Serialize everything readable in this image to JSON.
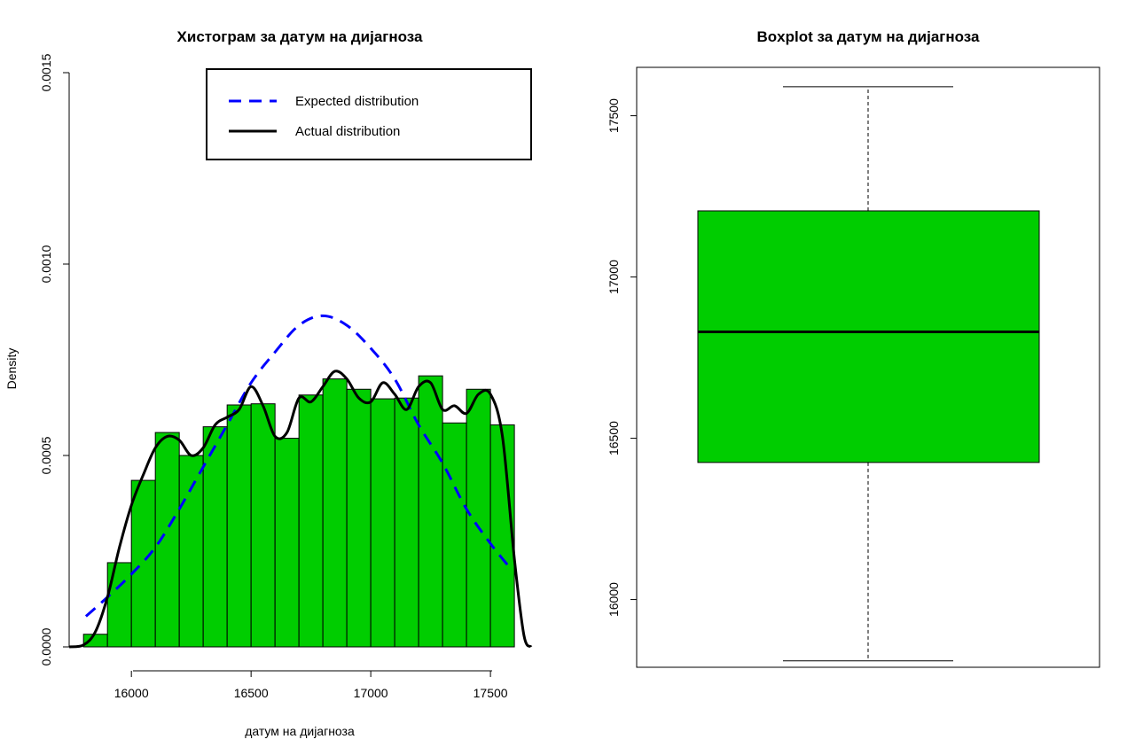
{
  "colors": {
    "bar_fill": "#00CD00",
    "expected_line": "#0000FF",
    "actual_line": "#000000",
    "box_fill": "#00CD00"
  },
  "chart_data": [
    {
      "type": "bar",
      "subtype": "histogram",
      "title": "Хистограм за  датум на дијагноза",
      "xlabel": "датум на дијагноза",
      "ylabel": "Density",
      "xlim": [
        15740,
        17670
      ],
      "ylim": [
        0,
        0.0015
      ],
      "x_ticks": [
        16000,
        16500,
        17000,
        17500
      ],
      "x_tick_labels": [
        "16000",
        "16500",
        "17000",
        "17500"
      ],
      "y_ticks": [
        0,
        0.0005,
        0.001,
        0.0015
      ],
      "y_tick_labels": [
        "0.0000",
        "0.0005",
        "0.0010",
        "0.0015"
      ],
      "bin_edges": [
        15800,
        15900,
        16000,
        16100,
        16200,
        16300,
        16400,
        16500,
        16600,
        16700,
        16800,
        16900,
        17000,
        17100,
        17200,
        17300,
        17400,
        17500,
        17600
      ],
      "values": [
        3.3e-05,
        0.00022,
        0.000435,
        0.00056,
        0.0005,
        0.000575,
        0.000632,
        0.000635,
        0.000545,
        0.000658,
        0.0007,
        0.000673,
        0.000648,
        0.00065,
        0.000708,
        0.000585,
        0.000673,
        0.00058
      ],
      "legend": {
        "position": "top-right",
        "entries": [
          "Expected distribution",
          "Actual distribution"
        ]
      },
      "series": [
        {
          "name": "Expected distribution",
          "style": "dashed",
          "x": [
            15810,
            15900,
            16000,
            16100,
            16200,
            16300,
            16400,
            16500,
            16600,
            16700,
            16800,
            16900,
            17000,
            17100,
            17200,
            17300,
            17400,
            17500,
            17590
          ],
          "y": [
            8e-05,
            0.00013,
            0.00019,
            0.00026,
            0.00036,
            0.00047,
            0.00058,
            0.00069,
            0.00077,
            0.00084,
            0.000865,
            0.00084,
            0.00078,
            0.0007,
            0.00058,
            0.00048,
            0.00036,
            0.00027,
            0.0002
          ]
        },
        {
          "name": "Actual distribution",
          "style": "solid",
          "x": [
            15740,
            15800,
            15850,
            15900,
            15950,
            16000,
            16050,
            16100,
            16150,
            16200,
            16250,
            16300,
            16350,
            16400,
            16450,
            16500,
            16550,
            16600,
            16650,
            16700,
            16750,
            16800,
            16850,
            16900,
            16950,
            17000,
            17050,
            17100,
            17150,
            17200,
            17250,
            17300,
            17350,
            17400,
            17450,
            17500,
            17550,
            17600,
            17640,
            17670
          ],
          "y": [
            0.0,
            5e-06,
            4e-05,
            0.00013,
            0.00026,
            0.00037,
            0.00045,
            0.00052,
            0.00055,
            0.00054,
            0.0005,
            0.00052,
            0.00058,
            0.0006,
            0.00062,
            0.00068,
            0.00063,
            0.00055,
            0.00056,
            0.00065,
            0.00064,
            0.00068,
            0.00072,
            0.0007,
            0.00065,
            0.00064,
            0.00069,
            0.00066,
            0.00062,
            0.00068,
            0.00069,
            0.00062,
            0.00063,
            0.00061,
            0.00066,
            0.00066,
            0.00055,
            0.00023,
            3e-05,
            0.0
          ]
        }
      ]
    },
    {
      "type": "box",
      "title": "Boxplot за  датум на дијагноза",
      "ylim": [
        15790,
        17650
      ],
      "y_ticks": [
        16000,
        16500,
        17000,
        17500
      ],
      "y_tick_labels": [
        "16000",
        "16500",
        "17000",
        "17500"
      ],
      "stats": {
        "min": 15810,
        "q1": 16425,
        "median": 16830,
        "q3": 17205,
        "max": 17590
      }
    }
  ]
}
